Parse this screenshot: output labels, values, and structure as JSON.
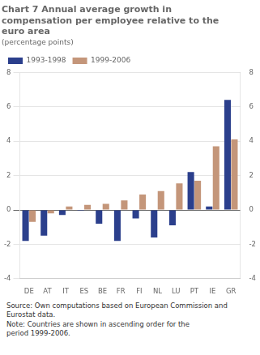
{
  "chart_data": {
    "type": "bar",
    "title": "Chart 7 Annual average growth in\ncompensation per employee relative to the\neuro area",
    "subtitle": "(percentage points)",
    "annotations": [
      "Source: Own computations based on European Commission and\nEurostat data.\nNote:  Countries are shown in ascending order for the\nperiod 1999-2006."
    ],
    "categories": [
      "DE",
      "AT",
      "IT",
      "ES",
      "BE",
      "FR",
      "FI",
      "NL",
      "LU",
      "PT",
      "IE",
      "GR"
    ],
    "series": [
      {
        "name": "1993-1998",
        "color": "#2b3f8c",
        "values": [
          -1.8,
          -1.5,
          -0.3,
          -0.05,
          -0.8,
          -1.8,
          -0.5,
          -1.6,
          -0.9,
          2.2,
          0.2,
          6.4
        ]
      },
      {
        "name": "1999-2006",
        "color": "#c4967a",
        "values": [
          -0.7,
          -0.2,
          0.2,
          0.3,
          0.35,
          0.55,
          0.9,
          1.1,
          1.55,
          1.7,
          3.7,
          4.1
        ]
      }
    ],
    "ylim": [
      -4,
      8
    ],
    "yticks": [
      -4,
      -2,
      0,
      2,
      4,
      6,
      8
    ],
    "y2lim": [
      -4,
      8
    ],
    "y2ticks": [
      -4,
      -2,
      0,
      2,
      4,
      6,
      8
    ],
    "grid": true,
    "legend": "top"
  }
}
